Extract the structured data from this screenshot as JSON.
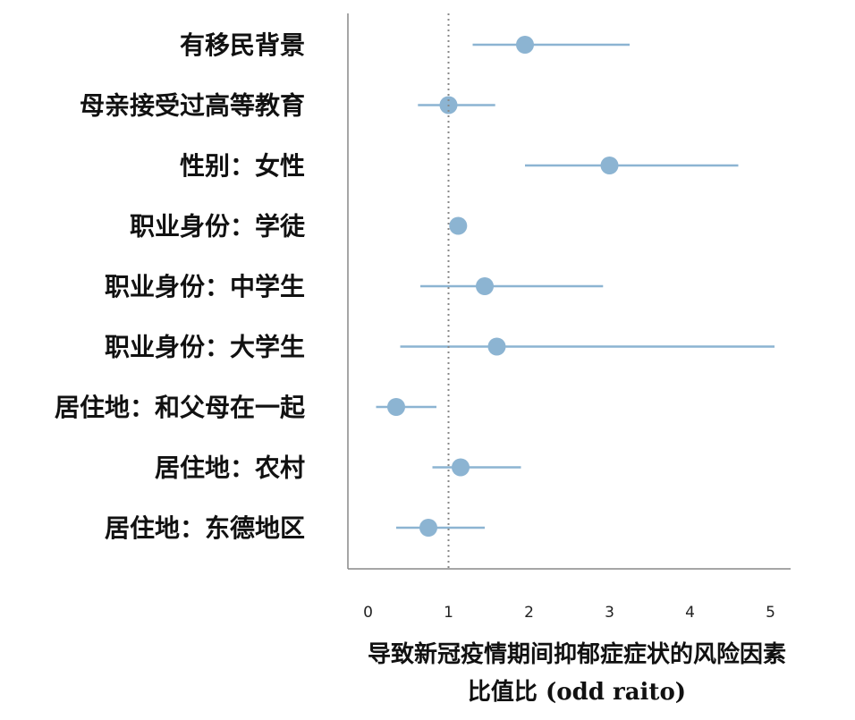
{
  "chart_data": {
    "type": "forest",
    "xlabel_lines": [
      "导致新冠疫情期间抑郁症症状的风险因素",
      "比值比 (odd raito)"
    ],
    "xlim": [
      -0.25,
      5.25
    ],
    "xticks": [
      0,
      1,
      2,
      3,
      4,
      5
    ],
    "reference_line": 1,
    "grid": false,
    "colors": {
      "marker": "#8CB4D2",
      "ci_line": "#8CB4D2",
      "axis": "#888888",
      "reference": "#888888"
    },
    "rows": [
      {
        "label": "有移民背景",
        "or": 1.95,
        "ci_low": 1.3,
        "ci_high": 3.25
      },
      {
        "label": "母亲接受过高等教育",
        "or": 1.0,
        "ci_low": 0.62,
        "ci_high": 1.58
      },
      {
        "label": "性别：女性",
        "or": 3.0,
        "ci_low": 1.95,
        "ci_high": 4.6
      },
      {
        "label": "职业身份：学徒",
        "or": 1.12,
        "ci_low": 1.12,
        "ci_high": 1.12
      },
      {
        "label": "职业身份：中学生",
        "or": 1.45,
        "ci_low": 0.65,
        "ci_high": 2.92
      },
      {
        "label": "职业身份：大学生",
        "or": 1.6,
        "ci_low": 0.4,
        "ci_high": 5.05
      },
      {
        "label": "居住地：和父母在一起",
        "or": 0.35,
        "ci_low": 0.1,
        "ci_high": 0.85
      },
      {
        "label": "居住地：农村",
        "or": 1.15,
        "ci_low": 0.8,
        "ci_high": 1.9
      },
      {
        "label": "居住地：东德地区",
        "or": 0.75,
        "ci_low": 0.35,
        "ci_high": 1.45
      }
    ]
  }
}
